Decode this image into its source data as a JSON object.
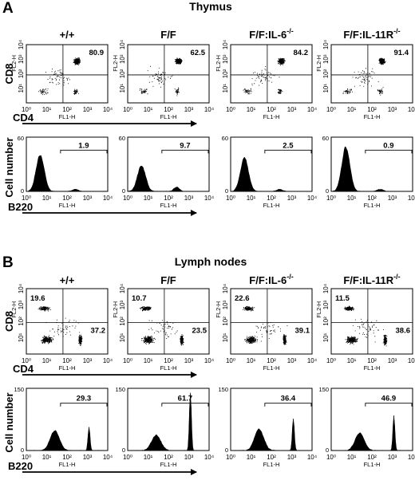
{
  "panels": [
    {
      "letter": "A",
      "title": "Thymus",
      "genotypes": [
        {
          "main": "+/+",
          "sup": ""
        },
        {
          "main": "F/F",
          "sup": ""
        },
        {
          "main": "F/F:IL-6",
          "sup": "-/-"
        },
        {
          "main": "F/F:IL-11R",
          "sup": "-/-"
        }
      ],
      "scatter": {
        "row_label": "CD8",
        "x_arrow_label": "CD4",
        "x_axis_label": "FL1-H",
        "y_axis_label": "FL2-H",
        "tick_labels": [
          "10⁰",
          "10¹",
          "10²",
          "10³",
          "10⁴"
        ],
        "plots": [
          {
            "upper_right": "80.9"
          },
          {
            "upper_right": "62.5"
          },
          {
            "upper_right": "84.2"
          },
          {
            "upper_right": "91.4"
          }
        ]
      },
      "histogram": {
        "row_label": "Cell number",
        "x_arrow_label": "B220",
        "x_axis_label": "FL1-H",
        "y_max": "60",
        "y_zero": "0",
        "tick_labels": [
          "10⁰",
          "10¹",
          "10²",
          "10³",
          "10⁴"
        ],
        "plots": [
          {
            "gate_percent": "1.9"
          },
          {
            "gate_percent": "9.7"
          },
          {
            "gate_percent": "2.5"
          },
          {
            "gate_percent": "0.9"
          }
        ]
      }
    },
    {
      "letter": "B",
      "title": "Lymph nodes",
      "genotypes": [
        {
          "main": "+/+",
          "sup": ""
        },
        {
          "main": "F/F",
          "sup": ""
        },
        {
          "main": "F/F:IL-6",
          "sup": "-/-"
        },
        {
          "main": "F/F:IL-11R",
          "sup": "-/-"
        }
      ],
      "scatter": {
        "row_label": "CD8",
        "x_arrow_label": "CD4",
        "x_axis_label": "FL1-H",
        "y_axis_label": "FL2-H",
        "tick_labels": [
          "10⁰",
          "10¹",
          "10²",
          "10³",
          "10⁴"
        ],
        "plots": [
          {
            "upper_left": "19.6",
            "lower_right": "37.2"
          },
          {
            "upper_left": "10.7",
            "lower_right": "23.5"
          },
          {
            "upper_left": "22.6",
            "lower_right": "39.1"
          },
          {
            "upper_left": "11.5",
            "lower_right": "38.6"
          }
        ]
      },
      "histogram": {
        "row_label": "Cell number",
        "x_arrow_label": "B220",
        "x_axis_label": "FL1-H",
        "y_max": "150",
        "y_zero": "0",
        "tick_labels": [
          "10⁰",
          "10¹",
          "10²",
          "10³",
          "10⁴"
        ],
        "plots": [
          {
            "gate_percent": "29.3"
          },
          {
            "gate_percent": "61.7"
          },
          {
            "gate_percent": "36.4"
          },
          {
            "gate_percent": "46.9"
          }
        ]
      }
    }
  ]
}
